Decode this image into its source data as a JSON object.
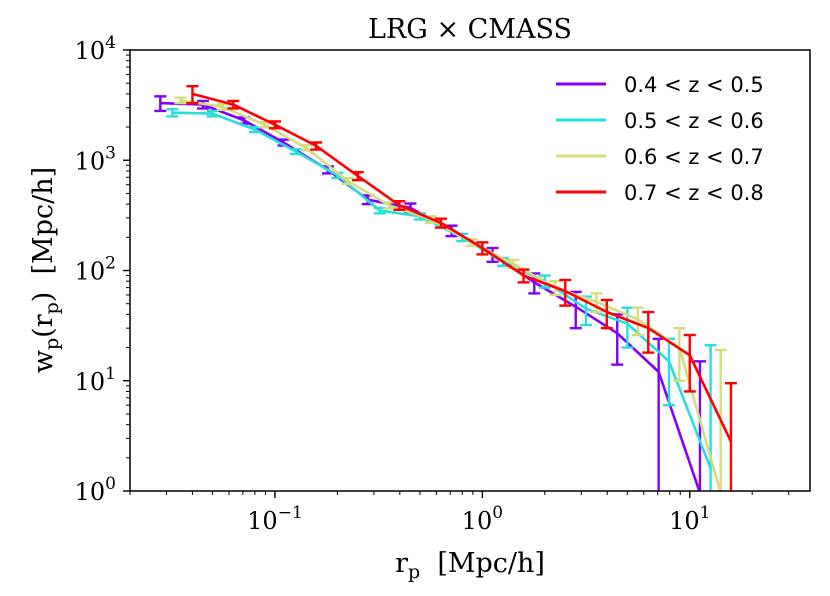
{
  "chart_data": {
    "type": "line",
    "title": "LRG × CMASS",
    "xlabel": "r_p  [Mpc/h]",
    "ylabel": "w_p(r_p)  [Mpc/h]",
    "xscale": "log",
    "yscale": "log",
    "xlim": [
      0.02,
      38
    ],
    "ylim": [
      1,
      10000
    ],
    "x_major_ticks": [
      {
        "value": 0.1,
        "base": "10",
        "exp": "−1"
      },
      {
        "value": 1,
        "base": "10",
        "exp": "0"
      },
      {
        "value": 10,
        "base": "10",
        "exp": "1"
      }
    ],
    "y_major_ticks": [
      {
        "value": 1,
        "base": "10",
        "exp": "0"
      },
      {
        "value": 10,
        "base": "10",
        "exp": "1"
      },
      {
        "value": 100,
        "base": "10",
        "exp": "2"
      },
      {
        "value": 1000,
        "base": "10",
        "exp": "3"
      },
      {
        "value": 10000,
        "base": "10",
        "exp": "4"
      }
    ],
    "legend_position": "top-right",
    "series": [
      {
        "name": "0.4 < z < 0.5",
        "color": "#8000ff",
        "x": [
          0.028,
          0.045,
          0.071,
          0.11,
          0.18,
          0.28,
          0.45,
          0.71,
          1.12,
          1.78,
          2.82,
          4.47,
          7.08,
          11.2
        ],
        "y": [
          3300,
          3200,
          2300,
          1450,
          820,
          440,
          370,
          230,
          140,
          78,
          47,
          27,
          12,
          0.22
        ],
        "yerr_low": [
          2800,
          2950,
          2150,
          1360,
          760,
          400,
          335,
          205,
          120,
          62,
          30,
          14,
          0,
          0
        ],
        "yerr_high": [
          3800,
          3450,
          2450,
          1540,
          880,
          480,
          405,
          255,
          160,
          94,
          64,
          40,
          24,
          15
        ]
      },
      {
        "name": "0.5 < z < 0.6",
        "color": "#2adddd",
        "x": [
          0.032,
          0.05,
          0.08,
          0.126,
          0.2,
          0.32,
          0.5,
          0.8,
          1.26,
          2.0,
          3.16,
          5.0,
          7.94,
          12.6
        ],
        "y": [
          2700,
          2650,
          1900,
          1200,
          730,
          350,
          310,
          200,
          120,
          80,
          45,
          33,
          15,
          1.6
        ],
        "yerr_low": [
          2500,
          2500,
          1800,
          1140,
          690,
          330,
          290,
          185,
          110,
          70,
          32,
          20,
          6,
          0
        ],
        "yerr_high": [
          2900,
          2800,
          2000,
          1260,
          770,
          370,
          330,
          215,
          130,
          90,
          58,
          46,
          24,
          21
        ]
      },
      {
        "name": "0.6 < z < 0.7",
        "color": "#d4dc7f",
        "x": [
          0.035,
          0.056,
          0.089,
          0.141,
          0.224,
          0.355,
          0.562,
          0.891,
          1.41,
          2.24,
          3.55,
          5.62,
          8.91,
          14.1
        ],
        "y": [
          3500,
          3050,
          2100,
          1300,
          650,
          390,
          290,
          180,
          115,
          70,
          52,
          36,
          20,
          0.8
        ],
        "yerr_low": [
          3300,
          2870,
          1990,
          1230,
          610,
          365,
          270,
          168,
          105,
          60,
          42,
          26,
          10,
          0
        ],
        "yerr_high": [
          3700,
          3230,
          2210,
          1370,
          690,
          415,
          310,
          192,
          125,
          80,
          62,
          46,
          30,
          19
        ]
      },
      {
        "name": "0.7 < z < 0.8",
        "color": "#ff0000",
        "x": [
          0.04,
          0.063,
          0.1,
          0.158,
          0.251,
          0.398,
          0.631,
          1.0,
          1.58,
          2.51,
          3.98,
          6.31,
          10.0,
          15.8
        ],
        "y": [
          4000,
          3200,
          2100,
          1350,
          720,
          390,
          270,
          160,
          90,
          65,
          42,
          30,
          17,
          2.8
        ],
        "yerr_low": [
          3300,
          2950,
          1950,
          1250,
          660,
          355,
          245,
          140,
          78,
          48,
          30,
          18,
          8,
          0
        ],
        "yerr_high": [
          4700,
          3450,
          2250,
          1450,
          780,
          425,
          295,
          180,
          102,
          82,
          54,
          42,
          26,
          9.5
        ]
      }
    ]
  }
}
